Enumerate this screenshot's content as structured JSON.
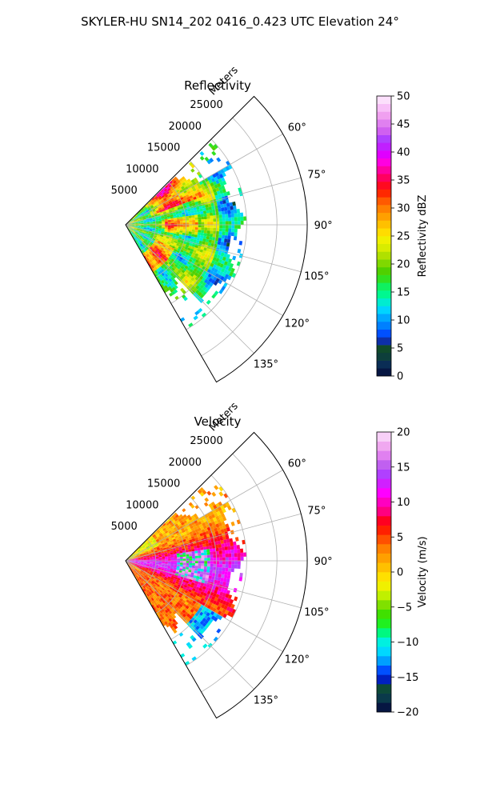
{
  "figure": {
    "title": "SKYLER-HU  SN14_202  0416_0.423 UTC Elevation 24°"
  },
  "chart_data": [
    {
      "type": "heatmap",
      "projection": "polar-sector",
      "title": "Reflectivity",
      "radial_label": "Meters",
      "r_ticks": [
        5000,
        10000,
        15000,
        20000,
        25000
      ],
      "r_tick_labels": [
        "5000",
        "10000",
        "15000",
        "20000",
        "25000"
      ],
      "rlim": [
        0,
        30000
      ],
      "theta_ticks": [
        60,
        75,
        90,
        105,
        120,
        135
      ],
      "theta_tick_labels": [
        "60°",
        "75°",
        "90°",
        "105°",
        "120°",
        "135°"
      ],
      "theta_range_deg": [
        45,
        150
      ],
      "grid": true,
      "data_max_range_m": 20000,
      "colorbar": {
        "label": "Reflectivity dBZ",
        "range": [
          0,
          50
        ],
        "ticks": [
          0,
          5,
          10,
          15,
          20,
          25,
          30,
          35,
          40,
          45,
          50
        ],
        "tick_labels": [
          "0",
          "5",
          "10",
          "15",
          "20",
          "25",
          "30",
          "35",
          "40",
          "45",
          "50"
        ],
        "colors": [
          "#061642",
          "#0a2d55",
          "#0d3f3b",
          "#104a2a",
          "#0d2fa8",
          "#0050ff",
          "#0080ff",
          "#00a8ff",
          "#00d4ff",
          "#00ecd0",
          "#00f890",
          "#10f060",
          "#30e020",
          "#50d000",
          "#80d800",
          "#b0e000",
          "#d8ec00",
          "#f0f000",
          "#ffdc00",
          "#ffc000",
          "#ffa000",
          "#ff8000",
          "#ff5a00",
          "#ff2800",
          "#ff0a20",
          "#ff0060",
          "#ff00a0",
          "#ff00e0",
          "#e000ff",
          "#c020ff",
          "#b040ff",
          "#d060f0",
          "#e080f0",
          "#f0a0f0",
          "#f8c0f8",
          "#fce0fc"
        ]
      }
    },
    {
      "type": "heatmap",
      "projection": "polar-sector",
      "title": "Velocity",
      "radial_label": "Meters",
      "r_ticks": [
        5000,
        10000,
        15000,
        20000,
        25000
      ],
      "r_tick_labels": [
        "5000",
        "10000",
        "15000",
        "20000",
        "25000"
      ],
      "rlim": [
        0,
        30000
      ],
      "theta_ticks": [
        60,
        75,
        90,
        105,
        120,
        135
      ],
      "theta_tick_labels": [
        "60°",
        "75°",
        "90°",
        "105°",
        "120°",
        "135°"
      ],
      "theta_range_deg": [
        45,
        150
      ],
      "grid": true,
      "data_max_range_m": 20000,
      "colorbar": {
        "label": "Velocity (m/s)",
        "range": [
          -20,
          20
        ],
        "ticks": [
          -20,
          -15,
          -10,
          -5,
          0,
          5,
          10,
          15,
          20
        ],
        "tick_labels": [
          "−20",
          "−15",
          "−10",
          "−5",
          "0",
          "5",
          "10",
          "15",
          "20"
        ],
        "colors": [
          "#061642",
          "#0a3a4a",
          "#0d4a38",
          "#0020c0",
          "#0050ff",
          "#00a0ff",
          "#00d8ff",
          "#00f0e0",
          "#00f880",
          "#20f020",
          "#40e000",
          "#80e000",
          "#c0f000",
          "#f0f000",
          "#ffe000",
          "#ffc000",
          "#ffa000",
          "#ff8000",
          "#ff5000",
          "#ff2000",
          "#ff0020",
          "#ff0080",
          "#ff00c0",
          "#ff00ff",
          "#d020ff",
          "#b040ff",
          "#c060f0",
          "#e080f0",
          "#f0a8f0",
          "#f8d0f8"
        ]
      }
    }
  ]
}
